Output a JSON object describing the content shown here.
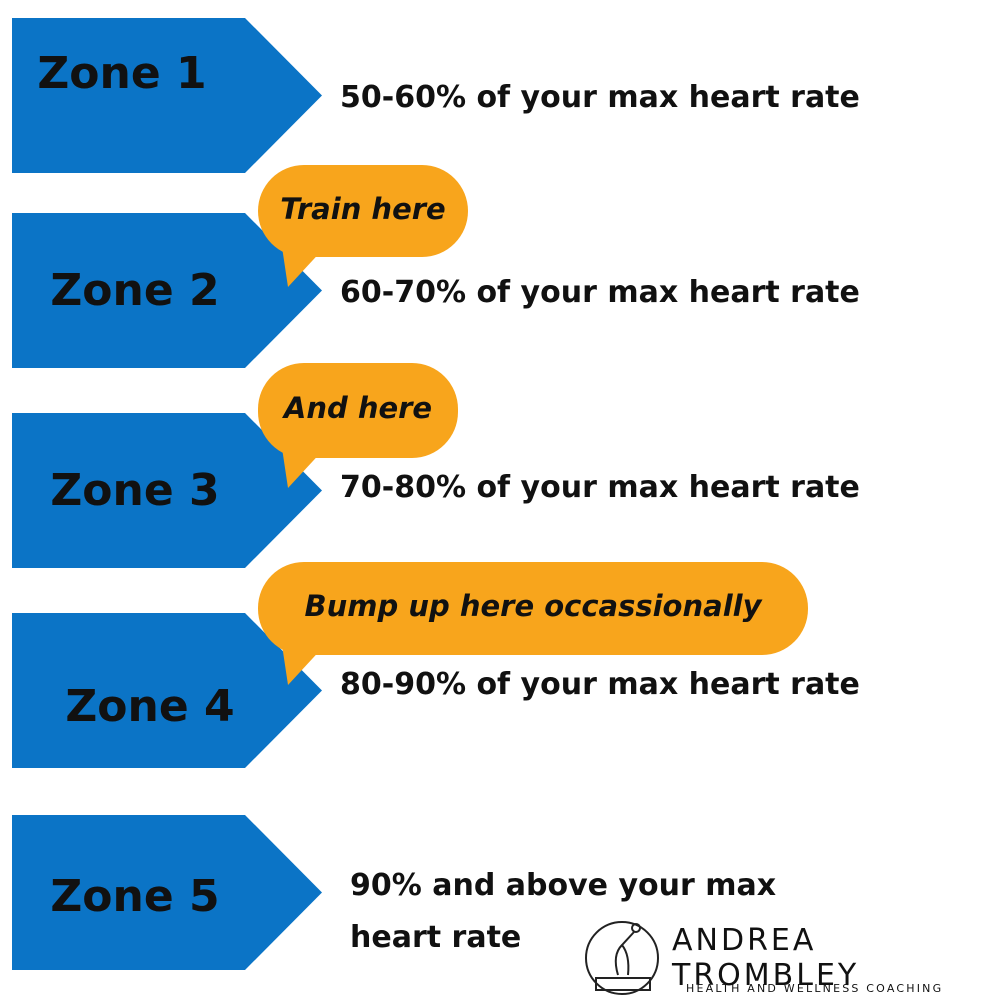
{
  "zones": [
    {
      "label": "Zone 1",
      "description": "50-60% of your max heart rate"
    },
    {
      "label": "Zone 2",
      "description": "60-70% of your max heart rate"
    },
    {
      "label": "Zone 3",
      "description": "70-80% of your max heart rate"
    },
    {
      "label": "Zone 4",
      "description": "80-90% of your max heart rate"
    },
    {
      "label": "Zone 5",
      "description": "90% and above your max heart rate"
    }
  ],
  "callouts": [
    "Train here",
    "And here",
    "Bump up here occassionally"
  ],
  "logo": {
    "name": "ANDREA TROMBLEY",
    "tagline": "HEALTH AND WELLNESS COACHING"
  }
}
